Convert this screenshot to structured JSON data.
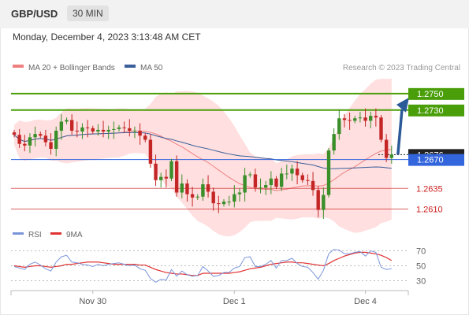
{
  "header": {
    "pair": "GBP/USD",
    "timeframe": "30 MIN"
  },
  "timestamp": "Monday, December 4, 2023 3:13:48 AM CET",
  "legend": {
    "ma20": "MA 20 + Bollinger Bands",
    "ma50": "MA 50",
    "credit": "Research © 2023 Trading Central",
    "rsi": "RSI",
    "ma9": "9MA"
  },
  "colors": {
    "resistance": "#4a9e0a",
    "support": "#cc1f1f",
    "pivot": "#3366dd",
    "current": "#222222",
    "bull": "#3a8f2a",
    "bear": "#c42626",
    "bollinger": "#ffd2d2",
    "ma20": "#f08080",
    "ma50": "#3a5f9a",
    "rsi": "#7b95d9",
    "rsi_ma": "#e03333",
    "arrow": "#2c5a98"
  },
  "chart_data": [
    {
      "type": "candlestick",
      "title": "GBP/USD 30 MIN",
      "ylim": [
        1.2598,
        1.2768
      ],
      "x_labels": [
        {
          "label": "Nov 30",
          "index": 15
        },
        {
          "label": "Dec 1",
          "index": 42
        },
        {
          "label": "Dec 4",
          "index": 67
        }
      ],
      "closes": [
        1.27,
        1.2689,
        1.2687,
        1.2697,
        1.2701,
        1.2699,
        1.2691,
        1.2683,
        1.2705,
        1.2716,
        1.2718,
        1.2705,
        1.2704,
        1.2709,
        1.2708,
        1.2704,
        1.2706,
        1.2704,
        1.2706,
        1.2707,
        1.2709,
        1.2708,
        1.2705,
        1.2705,
        1.2699,
        1.2694,
        1.2665,
        1.2645,
        1.2649,
        1.2647,
        1.2668,
        1.263,
        1.2641,
        1.2628,
        1.2624,
        1.2625,
        1.264,
        1.2631,
        1.2617,
        1.2616,
        1.2619,
        1.2619,
        1.2628,
        1.263,
        1.2651,
        1.2652,
        1.2636,
        1.2636,
        1.2639,
        1.2647,
        1.2637,
        1.2653,
        1.2653,
        1.2659,
        1.2651,
        1.2645,
        1.2644,
        1.2633,
        1.2609,
        1.2627,
        1.2681,
        1.2701,
        1.272,
        1.2718,
        1.2717,
        1.272,
        1.2721,
        1.2717,
        1.2723,
        1.2721,
        1.2694,
        1.2672,
        1.2676
      ],
      "levels": [
        {
          "label": "1.2750",
          "value": 1.275,
          "kind": "resistance"
        },
        {
          "label": "1.2730",
          "value": 1.273,
          "kind": "resistance"
        },
        {
          "label": "1.2676",
          "value": 1.2676,
          "kind": "current"
        },
        {
          "label": "1.2670",
          "value": 1.267,
          "kind": "pivot"
        },
        {
          "label": "1.2635",
          "value": 1.2635,
          "kind": "support"
        },
        {
          "label": "1.2610",
          "value": 1.261,
          "kind": "support"
        }
      ],
      "series": [
        "MA 20 + Bollinger Bands",
        "MA 50"
      ],
      "forecast": {
        "from": 1.2676,
        "to": 1.275,
        "direction": "up"
      },
      "grid": false,
      "legend_position": "top"
    },
    {
      "type": "line",
      "title": "RSI",
      "ylim": [
        20,
        80
      ],
      "yticks": [
        70,
        50,
        30
      ],
      "series": [
        {
          "name": "RSI",
          "values": [
            49,
            47,
            45,
            52,
            55,
            51,
            46,
            43,
            55,
            62,
            64,
            55,
            54,
            52,
            51,
            49,
            52,
            50,
            52,
            53,
            54,
            52,
            50,
            51,
            46,
            44,
            33,
            28,
            32,
            31,
            45,
            36,
            43,
            38,
            36,
            37,
            49,
            43,
            36,
            37,
            41,
            41,
            47,
            49,
            61,
            62,
            49,
            49,
            52,
            57,
            47,
            57,
            57,
            60,
            53,
            49,
            48,
            41,
            32,
            44,
            66,
            72,
            71,
            66,
            66,
            68,
            69,
            63,
            70,
            68,
            48,
            45,
            46
          ]
        },
        {
          "name": "9MA",
          "values": [
            50,
            49,
            48,
            49,
            50,
            50,
            49,
            48,
            49,
            50,
            52,
            52,
            53,
            54,
            55,
            55,
            55,
            54,
            53,
            52,
            52,
            52,
            52,
            52,
            51,
            51,
            48,
            45,
            43,
            41,
            40,
            39,
            39,
            38,
            37,
            37,
            40,
            40,
            40,
            40,
            40,
            40,
            41,
            42,
            44,
            46,
            47,
            48,
            50,
            52,
            53,
            54,
            55,
            55,
            54,
            54,
            53,
            52,
            51,
            50,
            53,
            57,
            60,
            63,
            65,
            67,
            68,
            68,
            67,
            66,
            64,
            61,
            57
          ]
        }
      ]
    }
  ]
}
